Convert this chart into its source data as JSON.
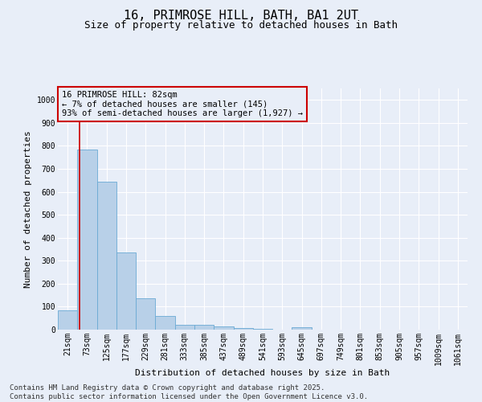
{
  "title": "16, PRIMROSE HILL, BATH, BA1 2UT",
  "subtitle": "Size of property relative to detached houses in Bath",
  "xlabel": "Distribution of detached houses by size in Bath",
  "ylabel": "Number of detached properties",
  "bar_labels": [
    "21sqm",
    "73sqm",
    "125sqm",
    "177sqm",
    "229sqm",
    "281sqm",
    "333sqm",
    "385sqm",
    "437sqm",
    "489sqm",
    "541sqm",
    "593sqm",
    "645sqm",
    "697sqm",
    "749sqm",
    "801sqm",
    "853sqm",
    "905sqm",
    "957sqm",
    "1009sqm",
    "1061sqm"
  ],
  "bar_values": [
    85,
    785,
    645,
    335,
    135,
    60,
    22,
    20,
    15,
    8,
    5,
    0,
    12,
    0,
    0,
    0,
    0,
    0,
    0,
    0,
    0
  ],
  "bar_color": "#b8d0e8",
  "bar_edge_color": "#6aaad4",
  "ylim": [
    0,
    1050
  ],
  "yticks": [
    0,
    100,
    200,
    300,
    400,
    500,
    600,
    700,
    800,
    900,
    1000
  ],
  "annotation_box_text": "16 PRIMROSE HILL: 82sqm\n← 7% of detached houses are smaller (145)\n93% of semi-detached houses are larger (1,927) →",
  "red_line_x": 0.6,
  "red_line_color": "#cc0000",
  "footer_text": "Contains HM Land Registry data © Crown copyright and database right 2025.\nContains public sector information licensed under the Open Government Licence v3.0.",
  "background_color": "#e8eef8",
  "grid_color": "#ffffff",
  "title_fontsize": 11,
  "subtitle_fontsize": 9,
  "axis_label_fontsize": 8,
  "tick_fontsize": 7,
  "annotation_fontsize": 7.5,
  "footer_fontsize": 6.5
}
